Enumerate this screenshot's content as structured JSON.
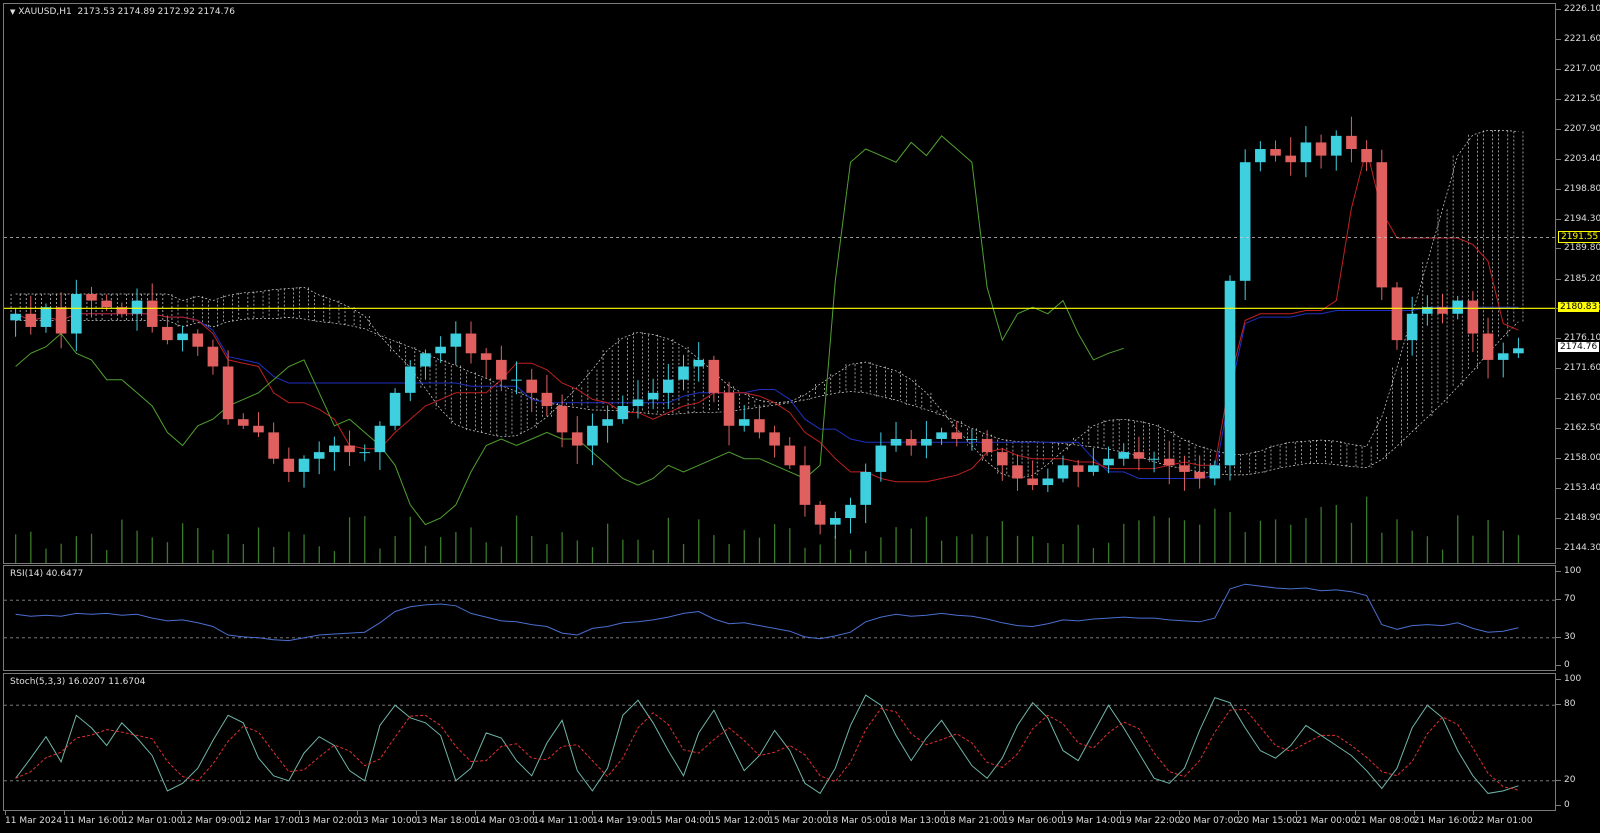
{
  "window": {
    "symbol": "XAUUSD,H1",
    "ohlc": "2173.53 2174.89 2172.92 2174.76",
    "collapse_icon": "triangle-down-icon"
  },
  "price_axis": {
    "labels": [
      "2226.10",
      "2221.60",
      "2217.00",
      "2212.50",
      "2207.90",
      "2203.40",
      "2198.80",
      "2194.30",
      "2189.80",
      "2185.20",
      "2180.70",
      "2176.10",
      "2171.60",
      "2167.00",
      "2162.50",
      "2158.00",
      "2153.40",
      "2148.90",
      "2144.30"
    ],
    "high": 2226.1,
    "low": 2144.3,
    "level_tag_1": "2191.55",
    "level_tag_2": "2180.83",
    "current_tag": "2174.76"
  },
  "levels": {
    "horizontal_line": 2180.83,
    "dotted_line": 2191.55,
    "current": 2174.76,
    "colors": {
      "horizontal_line": "#ffff00",
      "dotted_line": "#c8c8c8",
      "current_tag_bg": "#ffffff"
    }
  },
  "rsi": {
    "title": "RSI(14) 40.6477",
    "labels": [
      "100",
      "70",
      "30",
      "0"
    ],
    "levels": [
      70,
      30
    ],
    "line_color": "#4a6fd0"
  },
  "stoch": {
    "title": "Stoch(5,3,3) 16.0207 11.6704",
    "labels": [
      "100",
      "80",
      "20",
      "0"
    ],
    "levels": [
      80,
      20
    ],
    "main_color": "#6fb5a8",
    "signal_color": "#e03030"
  },
  "time_axis": {
    "labels": [
      "11 Mar 2024",
      "11 Mar 16:00",
      "12 Mar 01:00",
      "12 Mar 09:00",
      "12 Mar 17:00",
      "13 Mar 02:00",
      "13 Mar 10:00",
      "13 Mar 18:00",
      "14 Mar 03:00",
      "14 Mar 11:00",
      "14 Mar 19:00",
      "15 Mar 04:00",
      "15 Mar 12:00",
      "15 Mar 20:00",
      "18 Mar 05:00",
      "18 Mar 13:00",
      "18 Mar 21:00",
      "19 Mar 06:00",
      "19 Mar 14:00",
      "19 Mar 22:00",
      "20 Mar 07:00",
      "20 Mar 15:00",
      "21 Mar 00:00",
      "21 Mar 08:00",
      "21 Mar 16:00",
      "22 Mar 01:00"
    ]
  },
  "colors": {
    "bull_candle": "#3fd0e0",
    "bear_candle": "#e06060",
    "kijun": "#2030c0",
    "tenkan": "#c02020",
    "chikou": "#50a030",
    "cloud": "#d8d8d8",
    "volume": "#3a7a2a",
    "grid_line": "#8a8a8a"
  },
  "chart_data": {
    "type": "line",
    "series": [
      {
        "values": [
          2180,
          2178,
          2181,
          2177,
          2183,
          2182,
          2181,
          2180,
          2182,
          2178,
          2176,
          2177,
          2175,
          2172,
          2164,
          2163,
          2162,
          2158,
          2156,
          2158,
          2159,
          2160,
          2159,
          2159,
          2163,
          2168,
          2172,
          2174,
          2175,
          2177,
          2174,
          2173,
          2170,
          2170,
          2168,
          2166,
          2162,
          2160,
          2163,
          2164,
          2166,
          2167,
          2168,
          2170,
          2172,
          2173,
          2168,
          2163,
          2164,
          2162,
          2160,
          2157,
          2151,
          2148,
          2149,
          2151,
          2156,
          2160,
          2161,
          2160,
          2161,
          2162,
          2161,
          2161,
          2159,
          2157,
          2155,
          2154,
          2155,
          2157,
          2156,
          2157,
          2158,
          2159,
          2158,
          2158,
          2157,
          2156,
          2155,
          2157,
          2185,
          2203,
          2205,
          2204,
          2203,
          2206,
          2204,
          2207,
          2205,
          2203,
          2184,
          2176,
          2180,
          2181,
          2180,
          2182,
          2177,
          2173,
          2174,
          2174.76
        ]
      },
      {
        "name": "RSI(14)",
        "values": [
          55,
          53,
          54,
          53,
          56,
          55,
          56,
          54,
          55,
          51,
          48,
          49,
          46,
          42,
          33,
          31,
          30,
          28,
          27,
          30,
          33,
          34,
          35,
          36,
          46,
          58,
          63,
          65,
          66,
          64,
          56,
          52,
          48,
          47,
          44,
          42,
          35,
          33,
          40,
          42,
          46,
          47,
          49,
          52,
          56,
          58,
          50,
          45,
          46,
          43,
          40,
          37,
          31,
          29,
          32,
          36,
          47,
          52,
          55,
          53,
          54,
          56,
          54,
          53,
          50,
          46,
          43,
          42,
          45,
          49,
          48,
          50,
          51,
          52,
          51,
          51,
          49,
          48,
          47,
          51,
          82,
          87,
          85,
          83,
          82,
          83,
          80,
          81,
          79,
          75,
          44,
          39,
          43,
          44,
          43,
          46,
          40,
          36,
          37,
          40.6
        ]
      },
      {
        "name": "Stoch(5,3,3)",
        "values": [
          22,
          38,
          55,
          35,
          72,
          62,
          48,
          66,
          54,
          40,
          12,
          18,
          30,
          52,
          72,
          66,
          38,
          24,
          20,
          42,
          55,
          48,
          28,
          20,
          64,
          80,
          70,
          66,
          56,
          20,
          30,
          58,
          54,
          36,
          24,
          50,
          68,
          28,
          12,
          30,
          72,
          84,
          66,
          44,
          24,
          58,
          76,
          52,
          28,
          40,
          60,
          44,
          18,
          10,
          30,
          64,
          88,
          80,
          56,
          36,
          54,
          68,
          50,
          32,
          22,
          38,
          64,
          82,
          70,
          44,
          36,
          58,
          80,
          62,
          42,
          22,
          18,
          30,
          60,
          86,
          82,
          62,
          44,
          38,
          48,
          64,
          56,
          48,
          40,
          28,
          14,
          30,
          62,
          80,
          70,
          44,
          24,
          10,
          12,
          16
        ]
      }
    ],
    "ylim": [
      2144.3,
      2226.1
    ]
  }
}
